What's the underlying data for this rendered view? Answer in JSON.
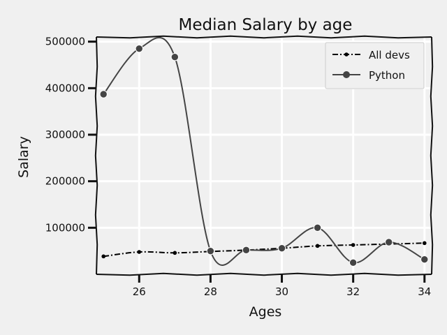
{
  "chart_data": {
    "type": "line",
    "title": "Median Salary by age",
    "xlabel": "Ages",
    "ylabel": "Salary",
    "xlim": [
      24.8,
      34.2
    ],
    "ylim": [
      0,
      510000
    ],
    "xticks": [
      26,
      28,
      30,
      32,
      34
    ],
    "yticks": [
      100000,
      200000,
      300000,
      400000,
      500000
    ],
    "grid": true,
    "legend_position": "top-right",
    "x": [
      25,
      26,
      27,
      28,
      29,
      30,
      31,
      32,
      33,
      34
    ],
    "series": [
      {
        "name": "All devs",
        "values": [
          38496,
          48000,
          46000,
          49000,
          52000,
          56000,
          61000,
          63000,
          65000,
          67000
        ],
        "marker": "small-dot",
        "style": "dash-dot",
        "color": "#000000"
      },
      {
        "name": "Python",
        "values": [
          387000,
          485000,
          467000,
          50000,
          52000,
          56000,
          100000,
          25000,
          69000,
          32000
        ],
        "marker": "dot",
        "style": "solid",
        "color": "#444444"
      }
    ]
  }
}
